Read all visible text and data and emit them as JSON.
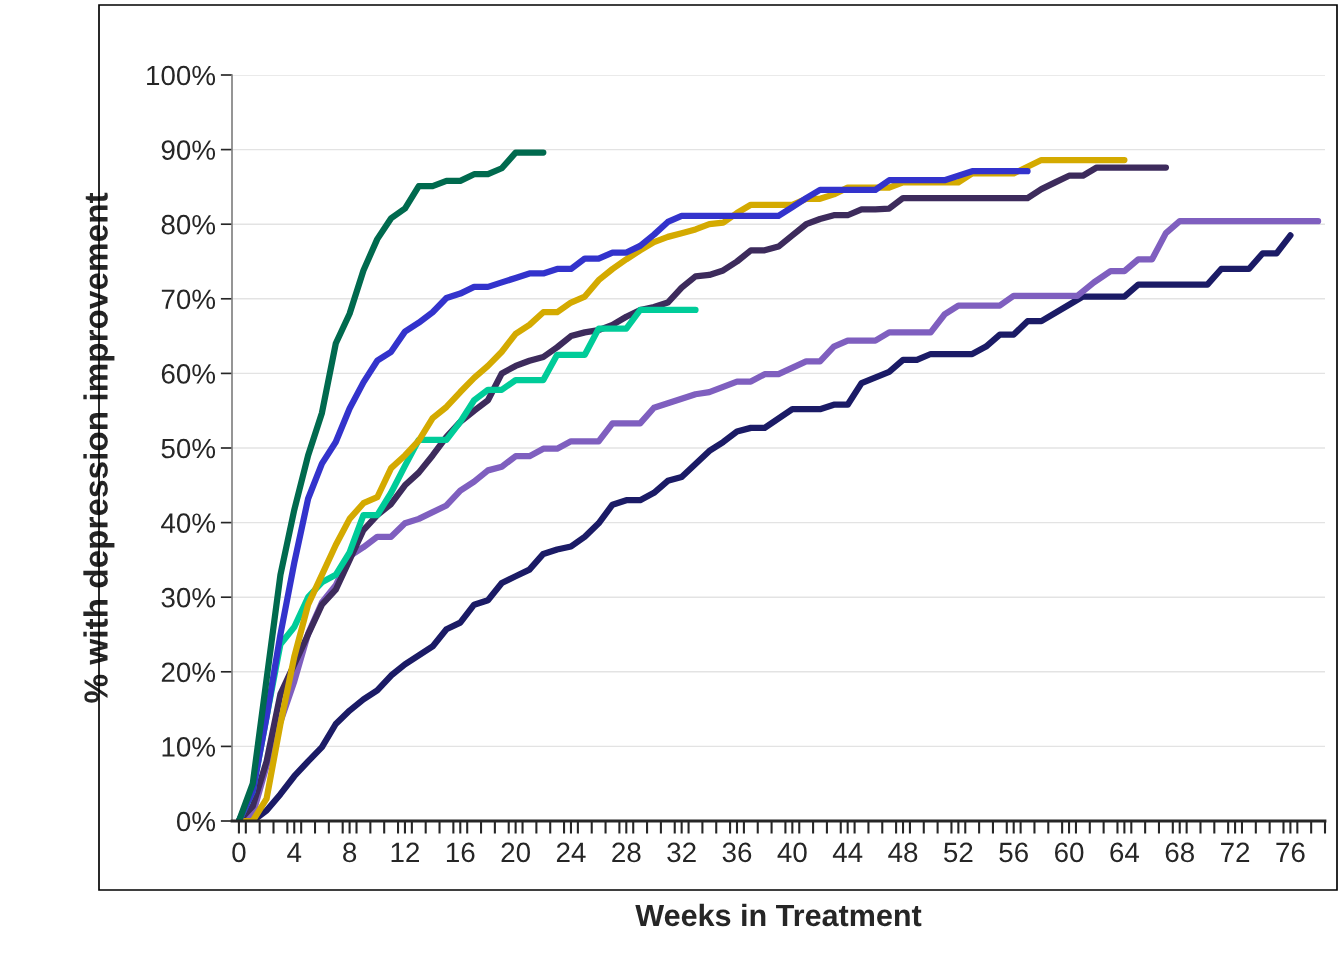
{
  "chart_data": {
    "type": "line",
    "xlabel": "Weeks in Treatment",
    "ylabel": "% with depression improvement",
    "xlim": [
      -0.5,
      78.5
    ],
    "xticks": [
      0,
      4,
      8,
      12,
      16,
      20,
      24,
      28,
      32,
      36,
      40,
      44,
      48,
      52,
      56,
      60,
      64,
      68,
      72,
      76,
      {
        "value": 0.5,
        "label": null
      },
      {
        "value": 1.5,
        "label": null
      },
      {
        "value": 2.5,
        "label": null
      },
      {
        "value": 3.5,
        "label": null
      },
      {
        "value": 4.5,
        "label": null
      },
      {
        "value": 5.5,
        "label": null
      },
      {
        "value": 6.5,
        "label": null
      },
      {
        "value": 7.5,
        "label": null
      },
      {
        "value": 8.5,
        "label": null
      },
      {
        "value": 9.5,
        "label": null
      },
      {
        "value": 10.5,
        "label": null
      },
      {
        "value": 11.5,
        "label": null
      },
      {
        "value": 12.5,
        "label": null
      },
      {
        "value": 13.5,
        "label": null
      },
      {
        "value": 14.5,
        "label": null
      },
      {
        "value": 15.5,
        "label": null
      },
      {
        "value": 16.5,
        "label": null
      },
      {
        "value": 17.5,
        "label": null
      },
      {
        "value": 18.5,
        "label": null
      },
      {
        "value": 19.5,
        "label": null
      },
      {
        "value": 20.5,
        "label": null
      },
      {
        "value": 21.5,
        "label": null
      },
      {
        "value": 22.5,
        "label": null
      },
      {
        "value": 23.5,
        "label": null
      },
      {
        "value": 24.5,
        "label": null
      },
      {
        "value": 25.5,
        "label": null
      },
      {
        "value": 26.5,
        "label": null
      },
      {
        "value": 27.5,
        "label": null
      },
      {
        "value": 28.5,
        "label": null
      },
      {
        "value": 29.5,
        "label": null
      },
      {
        "value": 30.5,
        "label": null
      },
      {
        "value": 31.5,
        "label": null
      },
      {
        "value": 32.5,
        "label": null
      },
      {
        "value": 33.5,
        "label": null
      },
      {
        "value": 34.5,
        "label": null
      },
      {
        "value": 35.5,
        "label": null
      },
      {
        "value": 36.5,
        "label": null
      },
      {
        "value": 37.5,
        "label": null
      },
      {
        "value": 38.5,
        "label": null
      },
      {
        "value": 39.5,
        "label": null
      },
      {
        "value": 40.5,
        "label": null
      },
      {
        "value": 41.5,
        "label": null
      },
      {
        "value": 42.5,
        "label": null
      },
      {
        "value": 43.5,
        "label": null
      },
      {
        "value": 44.5,
        "label": null
      },
      {
        "value": 45.5,
        "label": null
      },
      {
        "value": 46.5,
        "label": null
      },
      {
        "value": 47.5,
        "label": null
      },
      {
        "value": 48.5,
        "label": null
      },
      {
        "value": 49.5,
        "label": null
      },
      {
        "value": 50.5,
        "label": null
      },
      {
        "value": 51.5,
        "label": null
      },
      {
        "value": 52.5,
        "label": null
      },
      {
        "value": 53.5,
        "label": null
      },
      {
        "value": 54.5,
        "label": null
      },
      {
        "value": 55.5,
        "label": null
      },
      {
        "value": 56.5,
        "label": null
      },
      {
        "value": 57.5,
        "label": null
      },
      {
        "value": 58.5,
        "label": null
      },
      {
        "value": 59.5,
        "label": null
      },
      {
        "value": 60.5,
        "label": null
      },
      {
        "value": 61.5,
        "label": null
      },
      {
        "value": 62.5,
        "label": null
      },
      {
        "value": 63.5,
        "label": null
      },
      {
        "value": 64.5,
        "label": null
      },
      {
        "value": 65.5,
        "label": null
      },
      {
        "value": 66.5,
        "label": null
      },
      {
        "value": 67.5,
        "label": null
      },
      {
        "value": 68.5,
        "label": null
      },
      {
        "value": 69.5,
        "label": null
      },
      {
        "value": 70.5,
        "label": null
      },
      {
        "value": 71.5,
        "label": null
      },
      {
        "value": 72.5,
        "label": null
      },
      {
        "value": 73.5,
        "label": null
      },
      {
        "value": 74.5,
        "label": null
      },
      {
        "value": 75.5,
        "label": null
      },
      {
        "value": 76.5,
        "label": null
      },
      {
        "value": 77.5,
        "label": null
      },
      {
        "value": 78.5,
        "label": null
      }
    ],
    "ylim": [
      0,
      100
    ],
    "yticks": [
      {
        "value": 0,
        "label": "0%"
      },
      {
        "value": 10,
        "label": "10%"
      },
      {
        "value": 20,
        "label": "20%"
      },
      {
        "value": 30,
        "label": "30%"
      },
      {
        "value": 40,
        "label": "40%"
      },
      {
        "value": 50,
        "label": "50%"
      },
      {
        "value": 60,
        "label": "60%"
      },
      {
        "value": 70,
        "label": "70%"
      },
      {
        "value": 80,
        "label": "80%"
      },
      {
        "value": 90,
        "label": "90%"
      },
      {
        "value": 100,
        "label": "100%"
      }
    ],
    "grid": "y",
    "marker": "none",
    "line_style": "solid",
    "series": [
      {
        "color": "#1b1b66",
        "x": [
          0,
          1,
          2,
          3,
          4,
          5,
          6,
          7,
          8,
          9,
          10,
          11,
          12,
          13,
          14,
          15,
          16,
          17,
          18,
          19,
          20,
          21,
          22,
          23,
          24,
          25,
          26,
          27,
          28,
          29,
          30,
          31,
          32,
          34,
          35,
          36,
          37,
          38,
          40,
          42,
          43,
          44,
          45,
          47,
          48,
          49,
          50,
          53,
          54,
          55,
          56,
          57,
          58,
          60,
          61,
          64,
          65,
          70,
          71,
          73,
          74,
          75,
          76
        ],
        "values": [
          0,
          0,
          1.4,
          3.6,
          6,
          8,
          9.9,
          13,
          14.8,
          16.3,
          17.5,
          19.5,
          21,
          22.2,
          23.4,
          25.7,
          26.6,
          29,
          29.6,
          31.9,
          32.8,
          33.7,
          35.8,
          36.4,
          36.8,
          38.1,
          39.9,
          42.4,
          43,
          43,
          44,
          45.6,
          46.1,
          49.6,
          50.8,
          52.2,
          52.7,
          52.7,
          55.2,
          55.2,
          55.8,
          55.8,
          58.7,
          60.2,
          61.8,
          61.8,
          62.6,
          62.6,
          63.6,
          65.2,
          65.2,
          67,
          67,
          69.2,
          70.3,
          70.3,
          71.9,
          71.9,
          74,
          74,
          76.1,
          76.1,
          78.5
        ]
      },
      {
        "color": "#7f5fbf",
        "x": [
          0,
          1,
          2,
          3,
          4,
          5,
          6,
          7,
          8,
          9,
          10,
          11,
          12,
          13,
          15,
          16,
          17,
          18,
          19,
          20,
          21,
          22,
          23,
          24,
          26,
          27,
          29,
          30,
          31,
          33,
          34,
          36,
          37,
          38,
          39,
          41,
          42,
          43,
          44,
          46,
          47,
          50,
          51,
          52,
          55,
          56,
          60.6,
          61.8,
          63,
          64,
          65,
          66,
          67,
          68,
          78
        ],
        "values": [
          0,
          0.9,
          7.4,
          13.3,
          18.7,
          25.1,
          29.3,
          31.6,
          35.5,
          36.7,
          38.1,
          38.1,
          39.9,
          40.5,
          42.3,
          44.3,
          45.5,
          47,
          47.5,
          48.9,
          48.9,
          49.9,
          49.9,
          50.9,
          50.9,
          53.3,
          53.3,
          55.4,
          56,
          57.2,
          57.5,
          58.9,
          58.9,
          59.9,
          59.9,
          61.6,
          61.6,
          63.6,
          64.4,
          64.4,
          65.5,
          65.5,
          67.9,
          69.1,
          69.1,
          70.4,
          70.4,
          72.2,
          73.7,
          73.7,
          75.3,
          75.3,
          78.8,
          80.4,
          80.4
        ]
      },
      {
        "color": "#3d2b5c",
        "x": [
          0,
          1,
          2,
          3,
          4,
          5,
          6,
          7,
          8,
          9,
          10,
          11,
          12,
          13,
          14,
          15,
          16,
          17,
          18,
          19,
          20,
          21,
          22,
          23,
          24,
          25,
          26,
          27,
          28,
          29,
          30,
          31,
          32,
          33,
          34,
          35,
          36,
          37,
          38,
          39,
          40,
          41,
          42,
          43,
          44,
          45,
          46,
          47,
          48,
          57,
          58,
          59,
          60,
          61,
          62,
          67
        ],
        "values": [
          0,
          2,
          8,
          17,
          21,
          25,
          29,
          31,
          35,
          39,
          41,
          42.5,
          45,
          46.7,
          49,
          51.5,
          53.5,
          55,
          56.4,
          60,
          61,
          61.7,
          62.2,
          63.5,
          65,
          65.5,
          65.8,
          66.5,
          67.6,
          68.5,
          68.9,
          69.5,
          71.5,
          73,
          73.2,
          73.8,
          75,
          76.5,
          76.5,
          77,
          78.5,
          80,
          80.7,
          81.2,
          81.2,
          82,
          82,
          82.1,
          83.5,
          83.5,
          84.7,
          85.6,
          86.5,
          86.5,
          87.6,
          87.6
        ]
      },
      {
        "color": "#00cc99",
        "x": [
          0,
          1,
          2,
          3,
          4,
          5,
          6,
          7,
          8,
          9,
          10,
          11,
          12,
          13,
          14,
          15,
          16,
          17,
          18,
          19,
          20,
          21,
          22,
          23,
          24,
          25,
          26,
          27,
          28,
          29,
          33
        ],
        "values": [
          0,
          4,
          14,
          23.7,
          26,
          30,
          32,
          33,
          36,
          41,
          41,
          44,
          47.6,
          51.1,
          51.1,
          51.1,
          53.5,
          56.4,
          57.8,
          57.8,
          59.1,
          59.1,
          59.1,
          62.5,
          62.5,
          62.5,
          66,
          66,
          66,
          68.5,
          68.5
        ]
      },
      {
        "color": "#d4aa00",
        "x": [
          0,
          1,
          2,
          3,
          4,
          5,
          6,
          7,
          8,
          9,
          10,
          11,
          12,
          13,
          14,
          15,
          16,
          17,
          18,
          19,
          20,
          21,
          22,
          23,
          24,
          25,
          26,
          27,
          28,
          29,
          30,
          31,
          32,
          33,
          34,
          35,
          36,
          37,
          40,
          41,
          42,
          43,
          44,
          47,
          48,
          52,
          53,
          56,
          57,
          58,
          64
        ],
        "values": [
          0,
          0,
          3,
          13,
          22,
          29,
          33,
          37,
          40.5,
          42.6,
          43.4,
          47.3,
          49,
          51,
          54,
          55.5,
          57.5,
          59.4,
          61,
          62.9,
          65.3,
          66.5,
          68.2,
          68.2,
          69.5,
          70.3,
          72.5,
          74,
          75.3,
          76.5,
          77.6,
          78.3,
          78.8,
          79.3,
          80,
          80.2,
          81.5,
          82.6,
          82.6,
          83.4,
          83.4,
          84,
          84.9,
          84.9,
          85.6,
          85.6,
          86.8,
          86.8,
          87.7,
          88.6,
          88.6
        ]
      },
      {
        "color": "#3333cc",
        "x": [
          0,
          1,
          2,
          3,
          4,
          5,
          6,
          7,
          8,
          9,
          10,
          11,
          12,
          13,
          14,
          15,
          16,
          17,
          18,
          19,
          20,
          21,
          22,
          23,
          24,
          25,
          26,
          27,
          28,
          29,
          30,
          31,
          32,
          39,
          40,
          41,
          42,
          46,
          47,
          51,
          52,
          53,
          57
        ],
        "values": [
          0,
          4,
          14,
          25,
          34.6,
          43.2,
          47.9,
          50.8,
          55.3,
          58.8,
          61.7,
          62.9,
          65.6,
          66.8,
          68.2,
          70.1,
          70.7,
          71.6,
          71.6,
          72.2,
          72.8,
          73.4,
          73.4,
          74,
          74,
          75.4,
          75.4,
          76.2,
          76.2,
          77.1,
          78.6,
          80.3,
          81.1,
          81.1,
          82.3,
          83.5,
          84.6,
          84.6,
          85.9,
          85.9,
          86.5,
          87.1,
          87.1
        ]
      },
      {
        "color": "#006a4e",
        "x": [
          0,
          1,
          2,
          3,
          4,
          5,
          6,
          7,
          8,
          9,
          10,
          11,
          12,
          13,
          14,
          15,
          16,
          17,
          18,
          19,
          20,
          22
        ],
        "values": [
          0,
          5,
          19,
          33,
          41.7,
          49,
          54.7,
          64,
          68,
          73.8,
          78,
          80.8,
          82.1,
          85.1,
          85.1,
          85.8,
          85.8,
          86.7,
          86.7,
          87.5,
          89.6,
          89.6
        ]
      }
    ]
  }
}
